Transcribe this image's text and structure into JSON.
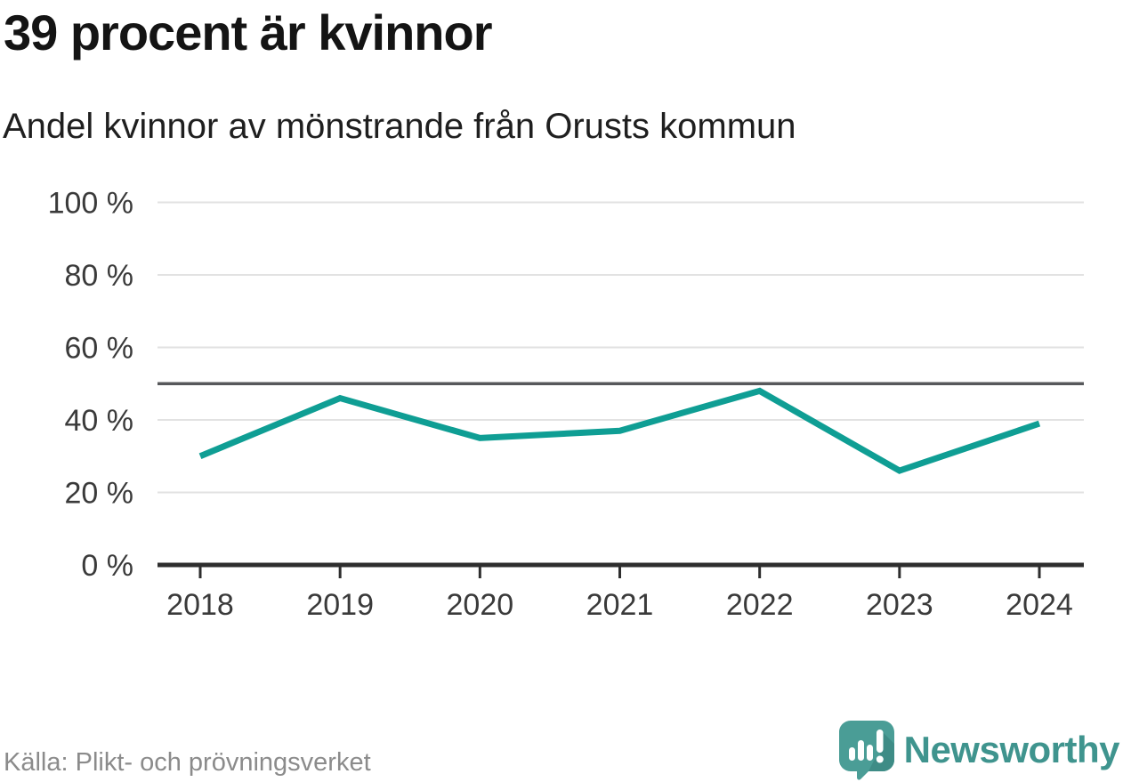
{
  "chart_data": {
    "type": "line",
    "title": "39 procent är kvinnor",
    "subtitle": "Andel kvinnor av mönstrande från Orusts kommun",
    "categories": [
      "2018",
      "2019",
      "2020",
      "2021",
      "2022",
      "2023",
      "2024"
    ],
    "series": [
      {
        "name": "Andel kvinnor av mönstrande",
        "values": [
          30,
          46,
          35,
          37,
          48,
          26,
          39
        ]
      }
    ],
    "xlabel": "",
    "ylabel": "",
    "ylim": [
      0,
      100
    ],
    "yticks": [
      0,
      20,
      40,
      60,
      80,
      100
    ],
    "ytick_suffix": " %",
    "reference_line": 50,
    "grid": true,
    "legend": "none",
    "colors": {
      "line": "#0f9e94",
      "grid": "#e2e2e2",
      "axis": "#2e2e2e",
      "reference": "#57585b",
      "tick_text": "#3a3a3a"
    }
  },
  "footer": {
    "source": "Källa: Plikt- och prövningsverket",
    "brand": "Newsworthy",
    "brand_color": "#3f948e",
    "logo_color": "#4a9d96",
    "logo_shadow_color": "#3e8c86",
    "logo_glyph_color": "#ffffff"
  }
}
